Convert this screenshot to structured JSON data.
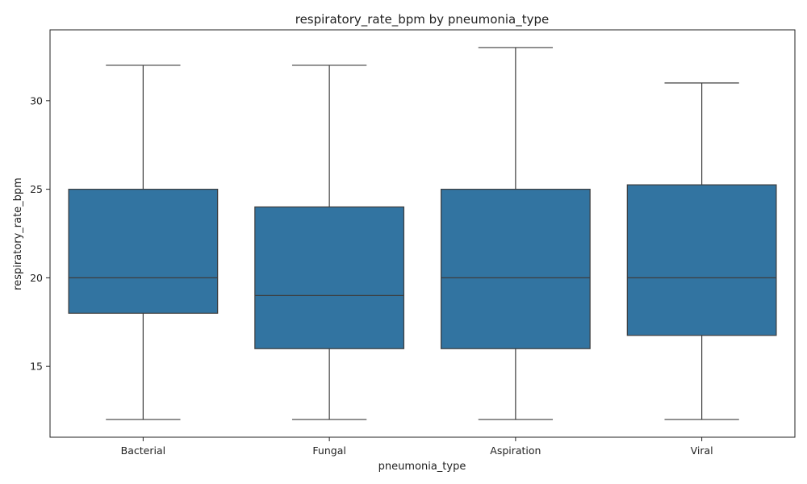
{
  "chart_data": {
    "type": "box",
    "title": "respiratory_rate_bpm by pneumonia_type",
    "xlabel": "pneumonia_type",
    "ylabel": "respiratory_rate_bpm",
    "ylim": [
      11.0,
      34.0
    ],
    "yticks": [
      15,
      20,
      25,
      30
    ],
    "ytick_labels": [
      "15",
      "20",
      "25",
      "30"
    ],
    "grid": false,
    "box_color": "#3274a1",
    "line_color": "#3d3d3d",
    "categories": [
      "Bacterial",
      "Fungal",
      "Aspiration",
      "Viral"
    ],
    "boxes": [
      {
        "category": "Bacterial",
        "min": 12,
        "q1": 18,
        "median": 20,
        "q3": 25,
        "max": 32
      },
      {
        "category": "Fungal",
        "min": 12,
        "q1": 16,
        "median": 19,
        "q3": 24,
        "max": 32
      },
      {
        "category": "Aspiration",
        "min": 12,
        "q1": 16,
        "median": 20,
        "q3": 25,
        "max": 33
      },
      {
        "category": "Viral",
        "min": 12,
        "q1": 16.75,
        "median": 20,
        "q3": 25.25,
        "max": 31
      }
    ]
  }
}
